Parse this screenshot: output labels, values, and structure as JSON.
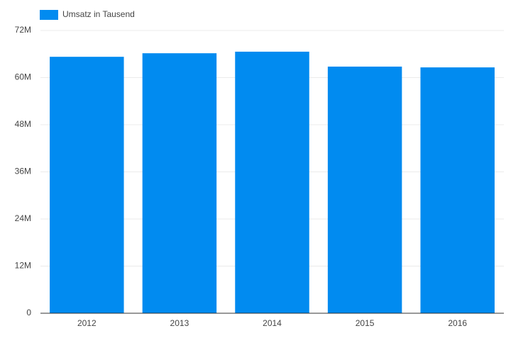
{
  "chart_data": {
    "type": "bar",
    "categories": [
      "2012",
      "2013",
      "2014",
      "2015",
      "2016"
    ],
    "series": [
      {
        "name": "Umsatz in Tausend",
        "color": "#018bf0",
        "values": [
          65300000,
          66200000,
          66600000,
          62800000,
          62600000
        ]
      }
    ],
    "ylim": [
      0,
      72000000
    ],
    "yticks": [
      0,
      {
        "value": 12000000,
        "label": "12M"
      },
      {
        "value": 24000000,
        "label": "24M"
      },
      {
        "value": 36000000,
        "label": "36M"
      },
      {
        "value": 48000000,
        "label": "48M"
      },
      {
        "value": 60000000,
        "label": "60M"
      },
      {
        "value": 72000000,
        "label": "72M"
      }
    ],
    "grid": true,
    "legend": "top-left"
  }
}
